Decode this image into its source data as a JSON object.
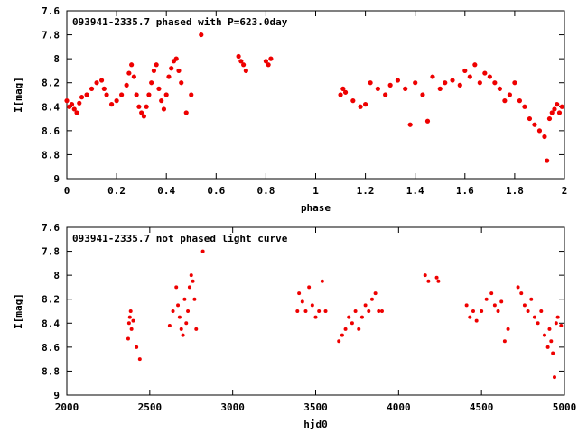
{
  "chart_data": [
    {
      "type": "scatter",
      "title": "093941-2335.7 phased with P=623.0day",
      "xlabel": "phase",
      "ylabel": "I[mag]",
      "xlim": [
        0,
        2
      ],
      "ylim": [
        9,
        7.6
      ],
      "x_ticks": [
        "0",
        "0.2",
        "0.4",
        "0.6",
        "0.8",
        "1",
        "1.2",
        "1.4",
        "1.6",
        "1.8",
        "2"
      ],
      "y_ticks": [
        "7.6",
        "7.8",
        "8",
        "8.2",
        "8.4",
        "8.6",
        "8.8",
        "9"
      ],
      "series": [
        {
          "color": "#ee0000",
          "x": [
            0.0,
            0.01,
            0.02,
            0.03,
            0.04,
            0.05,
            0.06,
            0.08,
            0.1,
            0.12,
            0.14,
            0.15,
            0.16,
            0.18,
            0.2,
            0.22,
            0.24,
            0.25,
            0.26,
            0.27,
            0.28,
            0.29,
            0.3,
            0.31,
            0.32,
            0.33,
            0.34,
            0.35,
            0.36,
            0.37,
            0.38,
            0.39,
            0.4,
            0.41,
            0.42,
            0.43,
            0.44,
            0.45,
            0.46,
            0.48,
            0.5,
            0.54,
            0.69,
            0.7,
            0.71,
            0.72,
            0.8,
            0.81,
            0.82,
            1.1,
            1.11,
            1.12,
            1.15,
            1.18,
            1.2,
            1.22,
            1.25,
            1.28,
            1.3,
            1.33,
            1.36,
            1.38,
            1.4,
            1.43,
            1.45,
            1.47,
            1.5,
            1.52,
            1.55,
            1.58,
            1.6,
            1.62,
            1.64,
            1.66,
            1.68,
            1.7,
            1.72,
            1.74,
            1.76,
            1.78,
            1.8,
            1.82,
            1.84,
            1.86,
            1.88,
            1.9,
            1.92,
            1.93,
            1.94,
            1.95,
            1.96,
            1.97,
            1.98,
            1.99
          ],
          "y": [
            8.35,
            8.4,
            8.38,
            8.42,
            8.45,
            8.37,
            8.32,
            8.3,
            8.25,
            8.2,
            8.18,
            8.25,
            8.3,
            8.38,
            8.35,
            8.3,
            8.22,
            8.12,
            8.05,
            8.15,
            8.3,
            8.4,
            8.45,
            8.48,
            8.4,
            8.3,
            8.2,
            8.1,
            8.05,
            8.25,
            8.35,
            8.42,
            8.3,
            8.15,
            8.08,
            8.02,
            8.0,
            8.1,
            8.2,
            8.45,
            8.3,
            7.8,
            7.98,
            8.02,
            8.05,
            8.1,
            8.02,
            8.05,
            8.0,
            8.3,
            8.25,
            8.28,
            8.35,
            8.4,
            8.38,
            8.2,
            8.25,
            8.3,
            8.22,
            8.18,
            8.25,
            8.55,
            8.2,
            8.3,
            8.52,
            8.15,
            8.25,
            8.2,
            8.18,
            8.22,
            8.1,
            8.15,
            8.05,
            8.2,
            8.12,
            8.15,
            8.2,
            8.25,
            8.35,
            8.3,
            8.2,
            8.35,
            8.4,
            8.5,
            8.55,
            8.6,
            8.65,
            8.85,
            8.5,
            8.45,
            8.42,
            8.38,
            8.45,
            8.4
          ]
        }
      ]
    },
    {
      "type": "scatter",
      "title": "093941-2335.7 not phased light curve",
      "xlabel": "hjd0",
      "ylabel": "I[mag]",
      "xlim": [
        2000,
        5000
      ],
      "ylim": [
        9,
        7.6
      ],
      "x_ticks": [
        "2000",
        "2500",
        "3000",
        "3500",
        "4000",
        "4500",
        "5000"
      ],
      "y_ticks": [
        "7.6",
        "7.8",
        "8",
        "8.2",
        "8.4",
        "8.6",
        "8.8",
        "9"
      ],
      "series": [
        {
          "color": "#ee0000",
          "x": [
            2370,
            2375,
            2380,
            2385,
            2390,
            2400,
            2420,
            2440,
            2620,
            2640,
            2660,
            2670,
            2680,
            2690,
            2700,
            2710,
            2720,
            2730,
            2740,
            2750,
            2760,
            2770,
            2780,
            2820,
            3390,
            3400,
            3420,
            3440,
            3460,
            3480,
            3500,
            3520,
            3540,
            3560,
            3640,
            3660,
            3680,
            3700,
            3720,
            3740,
            3760,
            3780,
            3800,
            3820,
            3840,
            3860,
            3880,
            3900,
            4160,
            4180,
            4230,
            4240,
            4410,
            4430,
            4450,
            4470,
            4500,
            4530,
            4560,
            4580,
            4600,
            4620,
            4640,
            4660,
            4720,
            4740,
            4760,
            4780,
            4800,
            4820,
            4840,
            4860,
            4880,
            4900,
            4910,
            4920,
            4930,
            4940,
            4950,
            4960,
            4980
          ],
          "y": [
            8.53,
            8.4,
            8.35,
            8.3,
            8.45,
            8.38,
            8.6,
            8.7,
            8.42,
            8.3,
            8.1,
            8.25,
            8.35,
            8.45,
            8.5,
            8.2,
            8.4,
            8.3,
            8.1,
            8.0,
            8.05,
            8.2,
            8.45,
            7.8,
            8.3,
            8.15,
            8.22,
            8.3,
            8.1,
            8.25,
            8.35,
            8.3,
            8.05,
            8.3,
            8.55,
            8.5,
            8.45,
            8.35,
            8.4,
            8.3,
            8.45,
            8.35,
            8.25,
            8.3,
            8.2,
            8.15,
            8.3,
            8.3,
            8.0,
            8.05,
            8.02,
            8.05,
            8.25,
            8.35,
            8.3,
            8.38,
            8.3,
            8.2,
            8.15,
            8.25,
            8.3,
            8.22,
            8.55,
            8.45,
            8.1,
            8.15,
            8.25,
            8.3,
            8.2,
            8.35,
            8.4,
            8.3,
            8.5,
            8.6,
            8.45,
            8.55,
            8.65,
            8.85,
            8.4,
            8.35,
            8.42
          ]
        }
      ]
    }
  ]
}
